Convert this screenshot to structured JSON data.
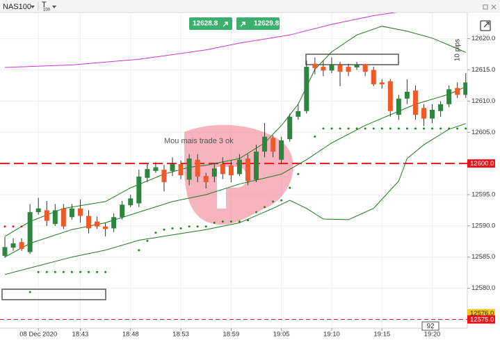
{
  "chart_data": {
    "type": "candlestick",
    "symbol": "NAS100",
    "timeframe": "T",
    "timeframe_sub": "100",
    "categories": [
      null,
      null,
      null,
      null,
      "08 Dec 2020",
      null,
      null,
      null,
      null,
      "18:43",
      null,
      null,
      null,
      null,
      null,
      "18:48",
      null,
      null,
      null,
      null,
      null,
      "18:53",
      null,
      null,
      null,
      null,
      null,
      "18:59",
      null,
      null,
      null,
      null,
      null,
      "19:05",
      null,
      null,
      null,
      null,
      null,
      "19:10",
      null,
      null,
      null,
      null,
      null,
      "19:15",
      null,
      null,
      null,
      null,
      null,
      "19:20",
      null,
      null,
      null,
      null
    ],
    "open": [
      12585.2,
      12586.5,
      12587.4,
      12585.8,
      12592.2,
      12592.5,
      12590.3,
      12592.8,
      12591.4,
      12592.8,
      12591.6,
      12590.7,
      12589.9,
      12589.6,
      12591.4,
      12593.3,
      12593.6,
      12597.7,
      12598.8,
      12599,
      12598.8,
      12599.9,
      12597.4,
      12600.6,
      12598,
      12597.9,
      12599.9,
      12599.7,
      12598.3,
      12600.8,
      12597.4,
      12601.9,
      12604.1,
      12600.6,
      12603.9,
      12607.5,
      12608.4,
      12616,
      12615.5,
      12614.9,
      12615.8,
      12615.5,
      12615.4,
      12615.9,
      12615,
      12613,
      12613.2,
      12607.8,
      12610.4,
      12611.7,
      12608.9,
      12607.2,
      12608.4,
      12609.5,
      12612.1,
      12611
    ],
    "high": [
      12588.2,
      12588,
      12588,
      12593.5,
      12594.5,
      12594,
      12593.5,
      12593.5,
      12593.5,
      12594.2,
      12592.5,
      12591.5,
      12590.5,
      12592,
      12594,
      12595,
      12599,
      12600,
      12600.2,
      12599.8,
      12601,
      12600.5,
      12601.5,
      12601.5,
      12598.5,
      12600,
      12601,
      12600.5,
      12601.5,
      12601.5,
      12603,
      12606.5,
      12604.5,
      12604.3,
      12608,
      12609.5,
      12616.5,
      12617,
      12616.5,
      12617,
      12616.3,
      12616,
      12616.3,
      12616,
      12615.5,
      12613.5,
      12613.5,
      12611,
      12613.5,
      12612.5,
      12609.5,
      12609.5,
      12610,
      12612.5,
      12613,
      12614.5
    ],
    "low": [
      12584.9,
      12586,
      12586,
      12585.5,
      12591.8,
      12590,
      12590,
      12589.5,
      12591,
      12590.5,
      12588.8,
      12589.5,
      12588.3,
      12589,
      12591,
      12593,
      12593,
      12597,
      12598.5,
      12595.5,
      12598,
      12597.5,
      12596.5,
      12597,
      12596,
      12597,
      12597.5,
      12597,
      12598,
      12596.5,
      12597,
      12601,
      12601,
      12600,
      12603.5,
      12607,
      12608,
      12614.3,
      12614,
      12614.5,
      12612.4,
      12614,
      12615,
      12614,
      12612.4,
      12612,
      12607.5,
      12607,
      12609.5,
      12607,
      12606,
      12606.5,
      12607.5,
      12609,
      12610.5,
      12610.5
    ],
    "close": [
      12586.6,
      12587.2,
      12586.3,
      12592.2,
      12592.8,
      12590.8,
      12592.5,
      12589.9,
      12592.8,
      12591.6,
      12589.6,
      12589.9,
      12589.5,
      12591.4,
      12593.4,
      12594.4,
      12597.9,
      12599.1,
      12599.4,
      12597,
      12599.9,
      12598.1,
      12600.8,
      12597.9,
      12597,
      12599.2,
      12598.3,
      12598.1,
      12600.6,
      12597.2,
      12601.9,
      12604.3,
      12601.9,
      12603.7,
      12607.5,
      12608.4,
      12615.5,
      12615.3,
      12614.9,
      12615.8,
      12614.7,
      12614.7,
      12615.8,
      12614.7,
      12612.7,
      12612.7,
      12608.4,
      12610.4,
      12611.5,
      12607.8,
      12607.2,
      12608.6,
      12609.5,
      12611.9,
      12611,
      12613
    ],
    "up_color": "#2e8540",
    "down_color": "#f05a28",
    "ylim": [
      12573.6,
      12624.2
    ],
    "yticks": [
      {
        "value": 12580,
        "label": "12580.0"
      },
      {
        "value": 12585,
        "label": "12585.0"
      },
      {
        "value": 12590,
        "label": "12590.0"
      },
      {
        "value": 12595,
        "label": "12595.0"
      },
      {
        "value": 12600,
        "label": "12600.0"
      },
      {
        "value": 12605,
        "label": "12605.0"
      },
      {
        "value": 12610,
        "label": "12610.0"
      },
      {
        "value": 12615,
        "label": "12615.0"
      },
      {
        "value": 12620,
        "label": "12620.0"
      }
    ],
    "grid": true,
    "overlays": [
      {
        "type": "line",
        "color": "#cc33cc",
        "x": [
          0,
          8,
          16,
          24,
          28,
          34,
          39,
          44,
          47
        ],
        "values": [
          12615.4,
          12615.8,
          12616.7,
          12618.2,
          12619.3,
          12620.6,
          12622.3,
          12623.7,
          12624.3
        ]
      },
      {
        "type": "line",
        "color": "#1a7a1a",
        "x": [
          0,
          3,
          7,
          12,
          15,
          19,
          22,
          24,
          28,
          31,
          33,
          35,
          37,
          39,
          42,
          45,
          48,
          51,
          54,
          55
        ],
        "values": [
          12588.3,
          12590.7,
          12592.8,
          12593.9,
          12596.1,
          12598.3,
          12599.4,
          12599.7,
          12600.8,
          12603.3,
          12606.1,
          12609.5,
          12615.1,
          12617.9,
          12620.6,
          12622,
          12621.2,
          12620.1,
          12618.4,
          12617.8
        ]
      },
      {
        "type": "line",
        "color": "#1a7a1a",
        "x": [
          0,
          3,
          8,
          12,
          16,
          20,
          24,
          28,
          33,
          36,
          39,
          43,
          46,
          49,
          53,
          55
        ],
        "values": [
          12585,
          12587.2,
          12589.4,
          12590.5,
          12592.2,
          12593.9,
          12595,
          12596.7,
          12598.3,
          12600.6,
          12603.3,
          12606.1,
          12607.8,
          12609.5,
          12611.1,
          12612.3
        ]
      },
      {
        "type": "line",
        "color": "#1a7a1a",
        "x": [
          0,
          8,
          12,
          16,
          24,
          28,
          32,
          34,
          36,
          38,
          41,
          44,
          47,
          48,
          50,
          53,
          55
        ],
        "values": [
          12582.2,
          12585,
          12586.1,
          12587.7,
          12589.4,
          12590.5,
          12592.8,
          12594.1,
          12592.8,
          12591.1,
          12591,
          12592.8,
          12597.2,
          12600.8,
          12603,
          12605.5,
          12606.4
        ]
      },
      {
        "type": "dots",
        "color": "#e02020",
        "x": [
          0,
          1,
          2
        ],
        "values": [
          12589.9,
          12589.9,
          12589.9
        ]
      },
      {
        "type": "dots",
        "color": "#1a8a1a",
        "x": [
          3,
          4,
          5,
          6,
          7,
          8,
          9,
          10,
          11,
          12,
          16,
          17,
          18,
          19,
          20,
          21,
          22,
          23,
          24,
          25,
          26,
          27,
          28,
          29,
          30,
          31,
          32,
          33,
          34,
          35,
          37,
          38,
          39,
          40,
          41,
          42,
          43,
          44,
          45,
          46,
          47,
          48,
          49,
          50,
          51,
          52,
          53,
          54,
          55
        ],
        "values": [
          12579.4,
          12582.6,
          12582.6,
          12582.6,
          12582.6,
          12582.6,
          12582.6,
          12582.6,
          12582.6,
          12582.6,
          12586.1,
          12587.6,
          12588.9,
          12589.4,
          12589.6,
          12589.6,
          12589.9,
          12589.9,
          12589.9,
          12590.5,
          12590.7,
          12590.7,
          12590.7,
          12590.9,
          12592.2,
          12593,
          12593.9,
          12594.1,
          12596.1,
          12598.3,
          12604.3,
          12605.6,
          12605.6,
          12605.6,
          12605.6,
          12605.6,
          12605.6,
          12605.6,
          12605.6,
          12605.6,
          12605.6,
          12605.6,
          12605.6,
          12605.6,
          12605.6,
          12605.6,
          12605.6,
          12605.6,
          12605.6
        ]
      }
    ],
    "price_lines": [
      {
        "value": 12600,
        "label": "12600.0",
        "color": "#e8141b",
        "style": "thick"
      },
      {
        "value": 12575,
        "label": "12575.0",
        "color": "#e8141b",
        "style": "thin"
      }
    ],
    "price_tags": [
      {
        "value": 12576,
        "label": "12576.0",
        "color": "#f5c518"
      }
    ],
    "annotations": [
      "Mou mais trade 3 ok",
      "10 pips"
    ],
    "trade_buttons": [
      "12628.8",
      "12629.8"
    ],
    "countdown": 92
  }
}
